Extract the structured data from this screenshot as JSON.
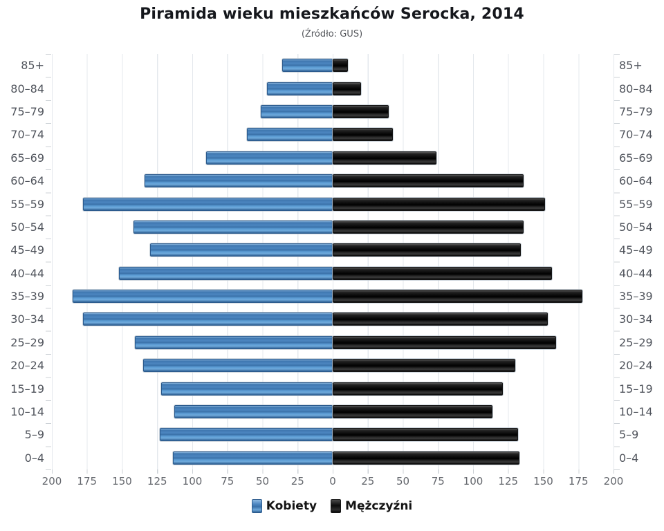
{
  "header": {
    "title": "Piramida wieku mieszkańców Serocka, 2014",
    "subtitle": "(Źródło: GUS)"
  },
  "legend": {
    "items": [
      {
        "label": "Kobiety",
        "color": "#4a86c0"
      },
      {
        "label": "Mężczyźni",
        "color": "#121212"
      }
    ]
  },
  "chart_data": {
    "type": "bar",
    "variant": "population-pyramid",
    "title": "Piramida wieku mieszkańców Serocka, 2014",
    "subtitle": "(Źródło: GUS)",
    "categories": [
      "85+",
      "80–84",
      "75–79",
      "70–74",
      "65–69",
      "60–64",
      "55–59",
      "50–54",
      "45–49",
      "40–44",
      "35–39",
      "30–34",
      "25–29",
      "20–24",
      "15–19",
      "10–14",
      "5–9",
      "0–4"
    ],
    "series": [
      {
        "name": "Kobiety",
        "side": "left",
        "color": "#4a86c0",
        "values": [
          36,
          47,
          51,
          61,
          90,
          134,
          178,
          142,
          130,
          152,
          185,
          178,
          141,
          135,
          122,
          113,
          123,
          114
        ]
      },
      {
        "name": "Mężczyźni",
        "side": "right",
        "color": "#121212",
        "values": [
          11,
          20,
          40,
          43,
          74,
          136,
          151,
          136,
          134,
          156,
          178,
          153,
          159,
          130,
          121,
          114,
          132,
          133
        ]
      }
    ],
    "x_ticks": [
      "200",
      "175",
      "150",
      "125",
      "100",
      "75",
      "50",
      "25",
      "0",
      "25",
      "50",
      "75",
      "100",
      "125",
      "150",
      "175",
      "200"
    ],
    "xlim_per_side": [
      0,
      200
    ],
    "grid": true,
    "legend_position": "bottom"
  }
}
